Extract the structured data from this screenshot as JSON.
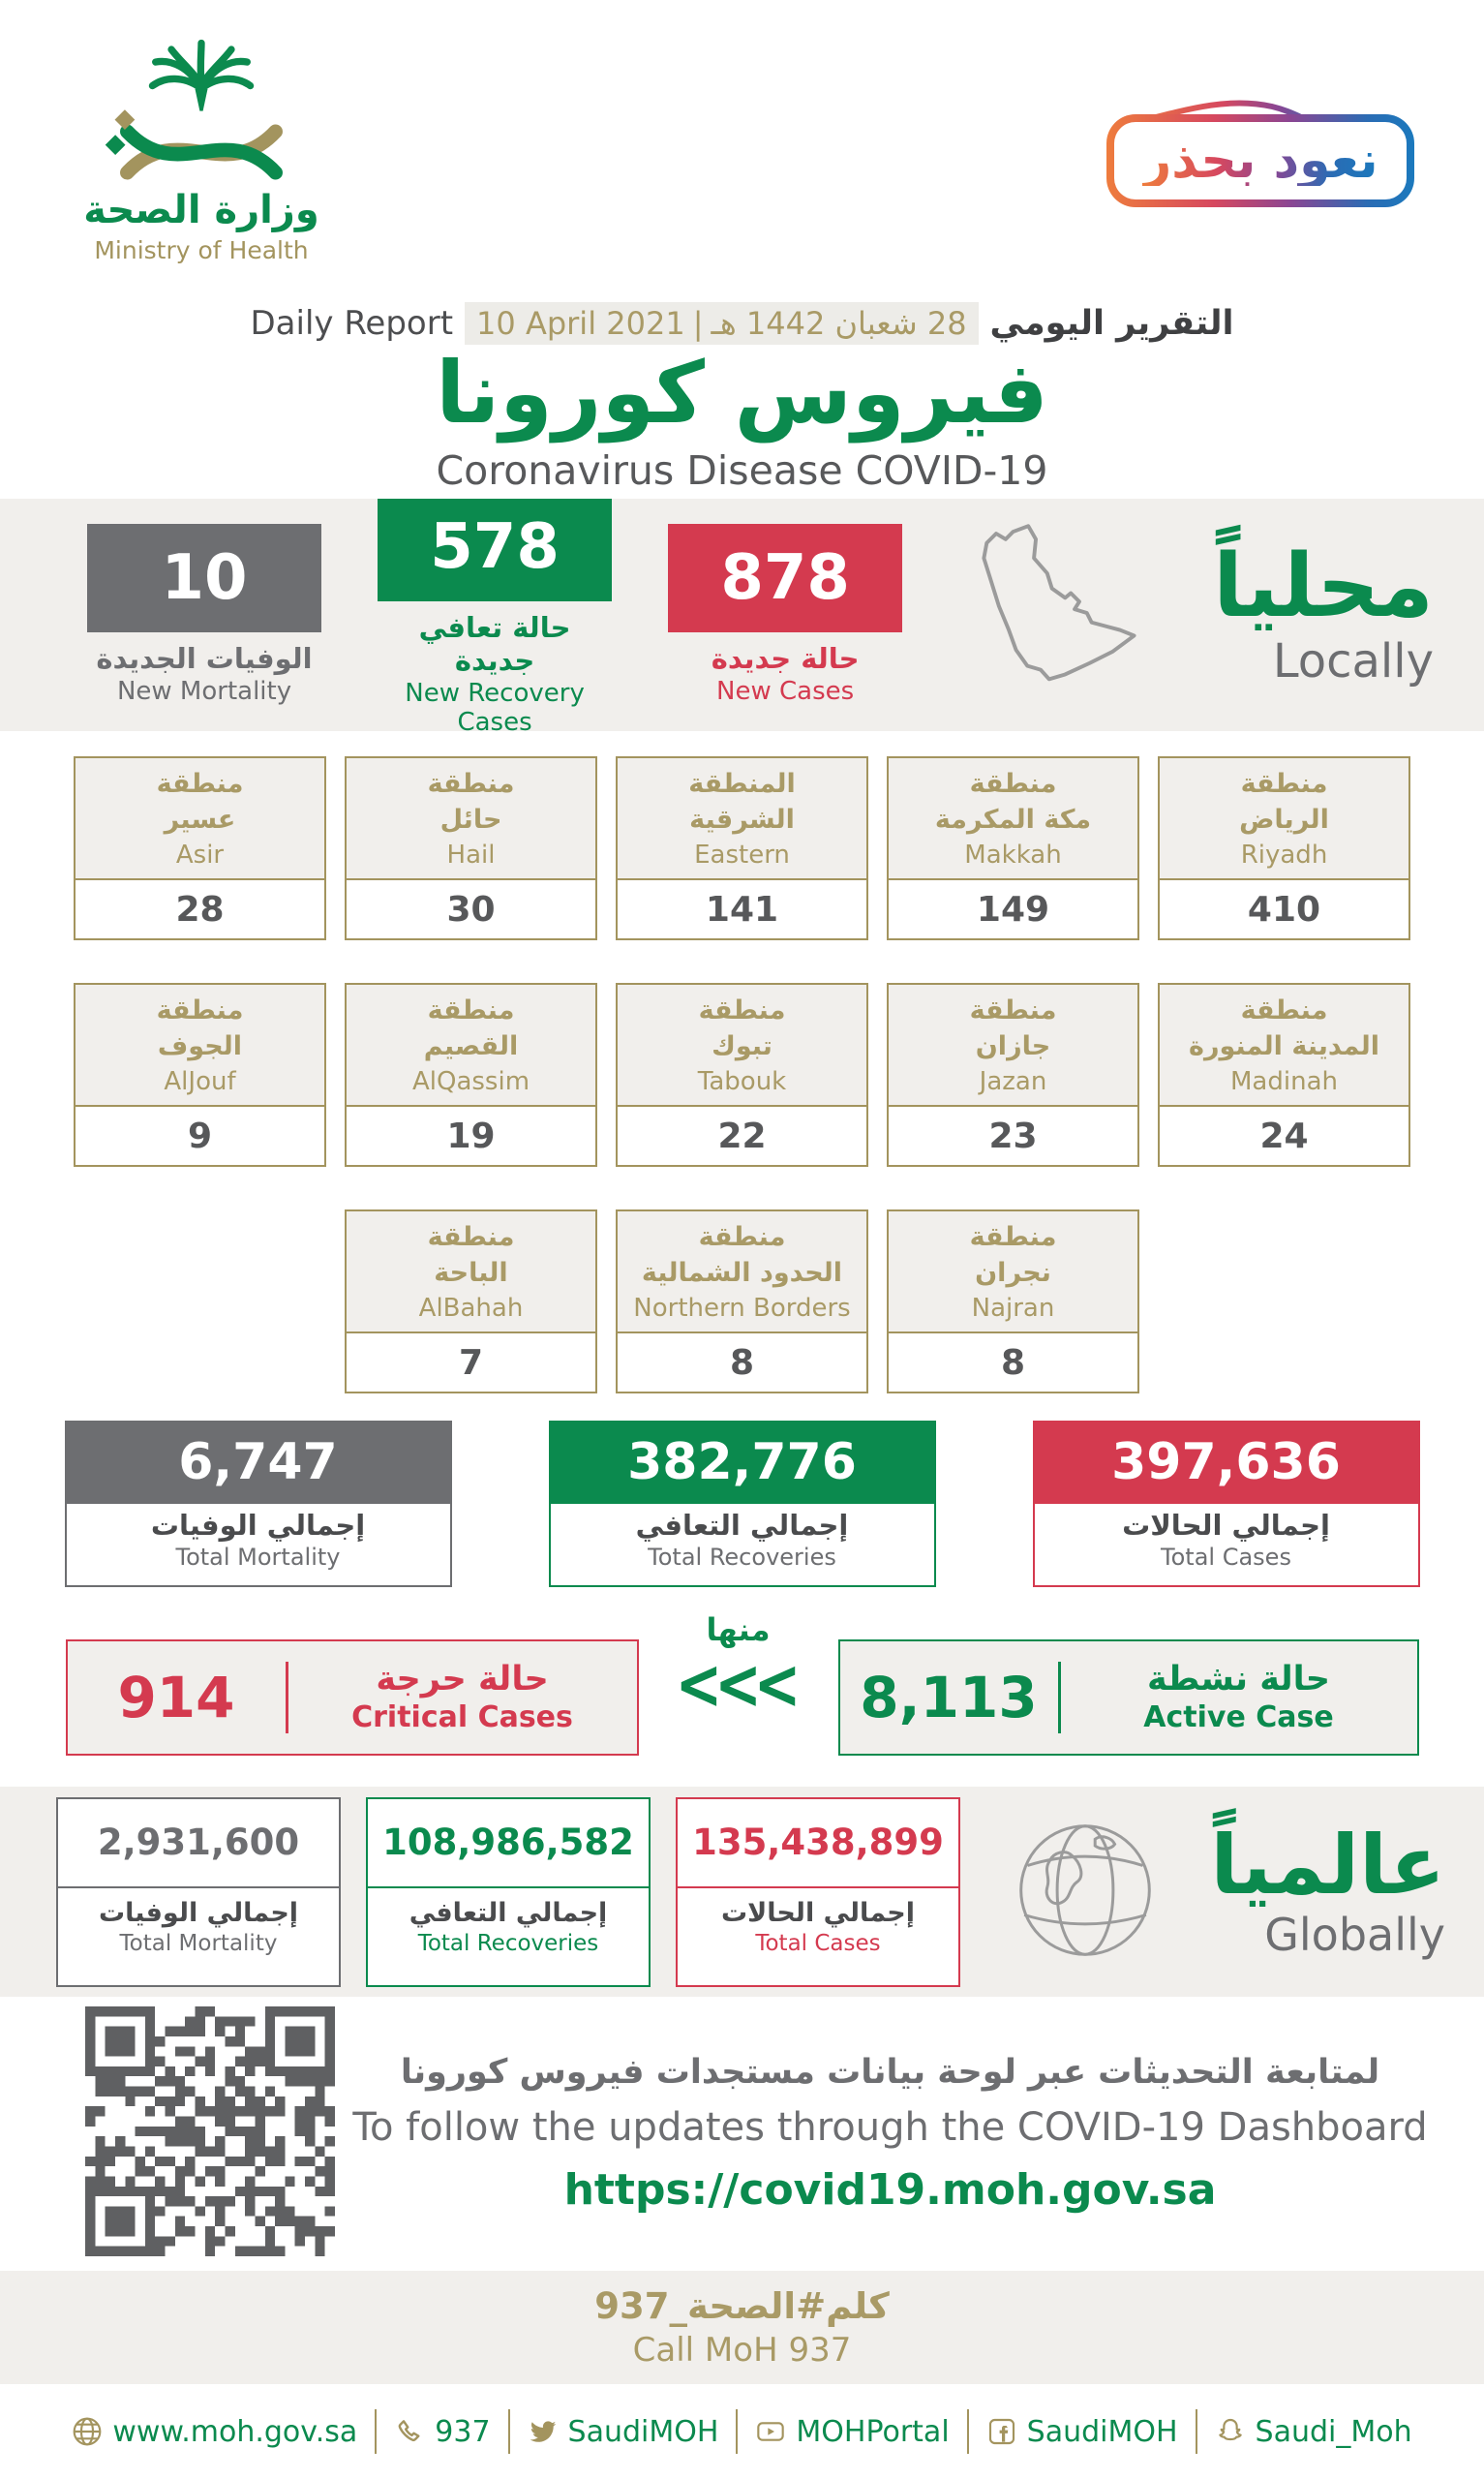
{
  "logo": {
    "title_ar": "وزارة الصحة",
    "title_en": "Ministry of Health",
    "icon": "moh-palm-emblem"
  },
  "badge": {
    "text": "نعود بحذر"
  },
  "header": {
    "daily_report_en": "Daily Report",
    "date_en": "10 April 2021",
    "date_separator": "|",
    "date_ar": "28 شعبان 1442 هـ",
    "daily_report_ar": "التقرير اليومي",
    "title_ar": "فيروس كورونا",
    "title_en": "Coronavirus Disease COVID-19"
  },
  "locally": {
    "heading_ar": "محلياً",
    "heading_en": "Locally",
    "map_icon": "saudi-arabia-map",
    "new_mortality": {
      "value": "10",
      "label_ar": "الوفيات الجديدة",
      "label_en": "New Mortality"
    },
    "new_recovery": {
      "value": "578",
      "label_ar": "حالة تعافي جديدة",
      "label_en": "New Recovery Cases"
    },
    "new_cases": {
      "value": "878",
      "label_ar": "حالة جديدة",
      "label_en": "New Cases"
    }
  },
  "regions": {
    "row1": [
      {
        "ar": "منطقة\nعسير",
        "en": "Asir",
        "value": "28"
      },
      {
        "ar": "منطقة\nحائل",
        "en": "Hail",
        "value": "30"
      },
      {
        "ar": "المنطقة\nالشرقية",
        "en": "Eastern",
        "value": "141"
      },
      {
        "ar": "منطقة\nمكة المكرمة",
        "en": "Makkah",
        "value": "149"
      },
      {
        "ar": "منطقة\nالرياض",
        "en": "Riyadh",
        "value": "410"
      }
    ],
    "row2": [
      {
        "ar": "منطقة\nالجوف",
        "en": "AlJouf",
        "value": "9"
      },
      {
        "ar": "منطقة\nالقصيم",
        "en": "AlQassim",
        "value": "19"
      },
      {
        "ar": "منطقة\nتبوك",
        "en": "Tabouk",
        "value": "22"
      },
      {
        "ar": "منطقة\nجازان",
        "en": "Jazan",
        "value": "23"
      },
      {
        "ar": "منطقة\nالمدينة المنورة",
        "en": "Madinah",
        "value": "24"
      }
    ],
    "row3": [
      {
        "ar": "منطقة\nالباحة",
        "en": "AlBahah",
        "value": "7"
      },
      {
        "ar": "منطقة\nالحدود الشمالية",
        "en": "Northern Borders",
        "value": "8"
      },
      {
        "ar": "منطقة\nنجران",
        "en": "Najran",
        "value": "8"
      }
    ]
  },
  "totals": {
    "mortality": {
      "value": "6,747",
      "label_ar": "إجمالي الوفيات",
      "label_en": "Total Mortality"
    },
    "recoveries": {
      "value": "382,776",
      "label_ar": "إجمالي التعافي",
      "label_en": "Total Recoveries"
    },
    "cases": {
      "value": "397,636",
      "label_ar": "إجمالي الحالات",
      "label_en": "Total Cases"
    }
  },
  "critical_active": {
    "critical": {
      "value": "914",
      "label_ar": "حالة حرجة",
      "label_en": "Critical Cases"
    },
    "of_which_ar": "منها",
    "chevrons": "<<<",
    "active": {
      "value": "8,113",
      "label_ar": "حالة نشطة",
      "label_en": "Active Case"
    }
  },
  "globally": {
    "heading_ar": "عالمياً",
    "heading_en": "Globally",
    "globe_icon": "globe-line",
    "mortality": {
      "value": "2,931,600",
      "label_ar": "إجمالي الوفيات",
      "label_en": "Total Mortality"
    },
    "recoveries": {
      "value": "108,986,582",
      "label_ar": "إجمالي التعافي",
      "label_en": "Total Recoveries"
    },
    "cases": {
      "value": "135,438,899",
      "label_ar": "إجمالي الحالات",
      "label_en": "Total Cases"
    }
  },
  "dashboard": {
    "qr_icon": "qr-code",
    "line_ar": "لمتابعة التحديثات عبر لوحة بيانات مستجدات فيروس كورونا",
    "line_en": "To follow the updates through the COVID-19 Dashboard",
    "url": "https://covid19.moh.gov.sa"
  },
  "call": {
    "ar": "كلم#الصحة_937",
    "en": "Call MoH 937"
  },
  "footer": {
    "links": [
      {
        "icon": "globe-icon",
        "label": "www.moh.gov.sa"
      },
      {
        "icon": "phone-icon",
        "label": "937"
      },
      {
        "icon": "twitter-icon",
        "label": "SaudiMOH"
      },
      {
        "icon": "youtube-icon",
        "label": "MOHPortal"
      },
      {
        "icon": "facebook-icon",
        "label": "SaudiMOH"
      },
      {
        "icon": "snapchat-icon",
        "label": "Saudi_Moh"
      }
    ]
  },
  "colors": {
    "green": "#0b8a4e",
    "red": "#d43a4f",
    "gray": "#6d6e71",
    "gold": "#a3945e",
    "band": "#f1efec"
  }
}
